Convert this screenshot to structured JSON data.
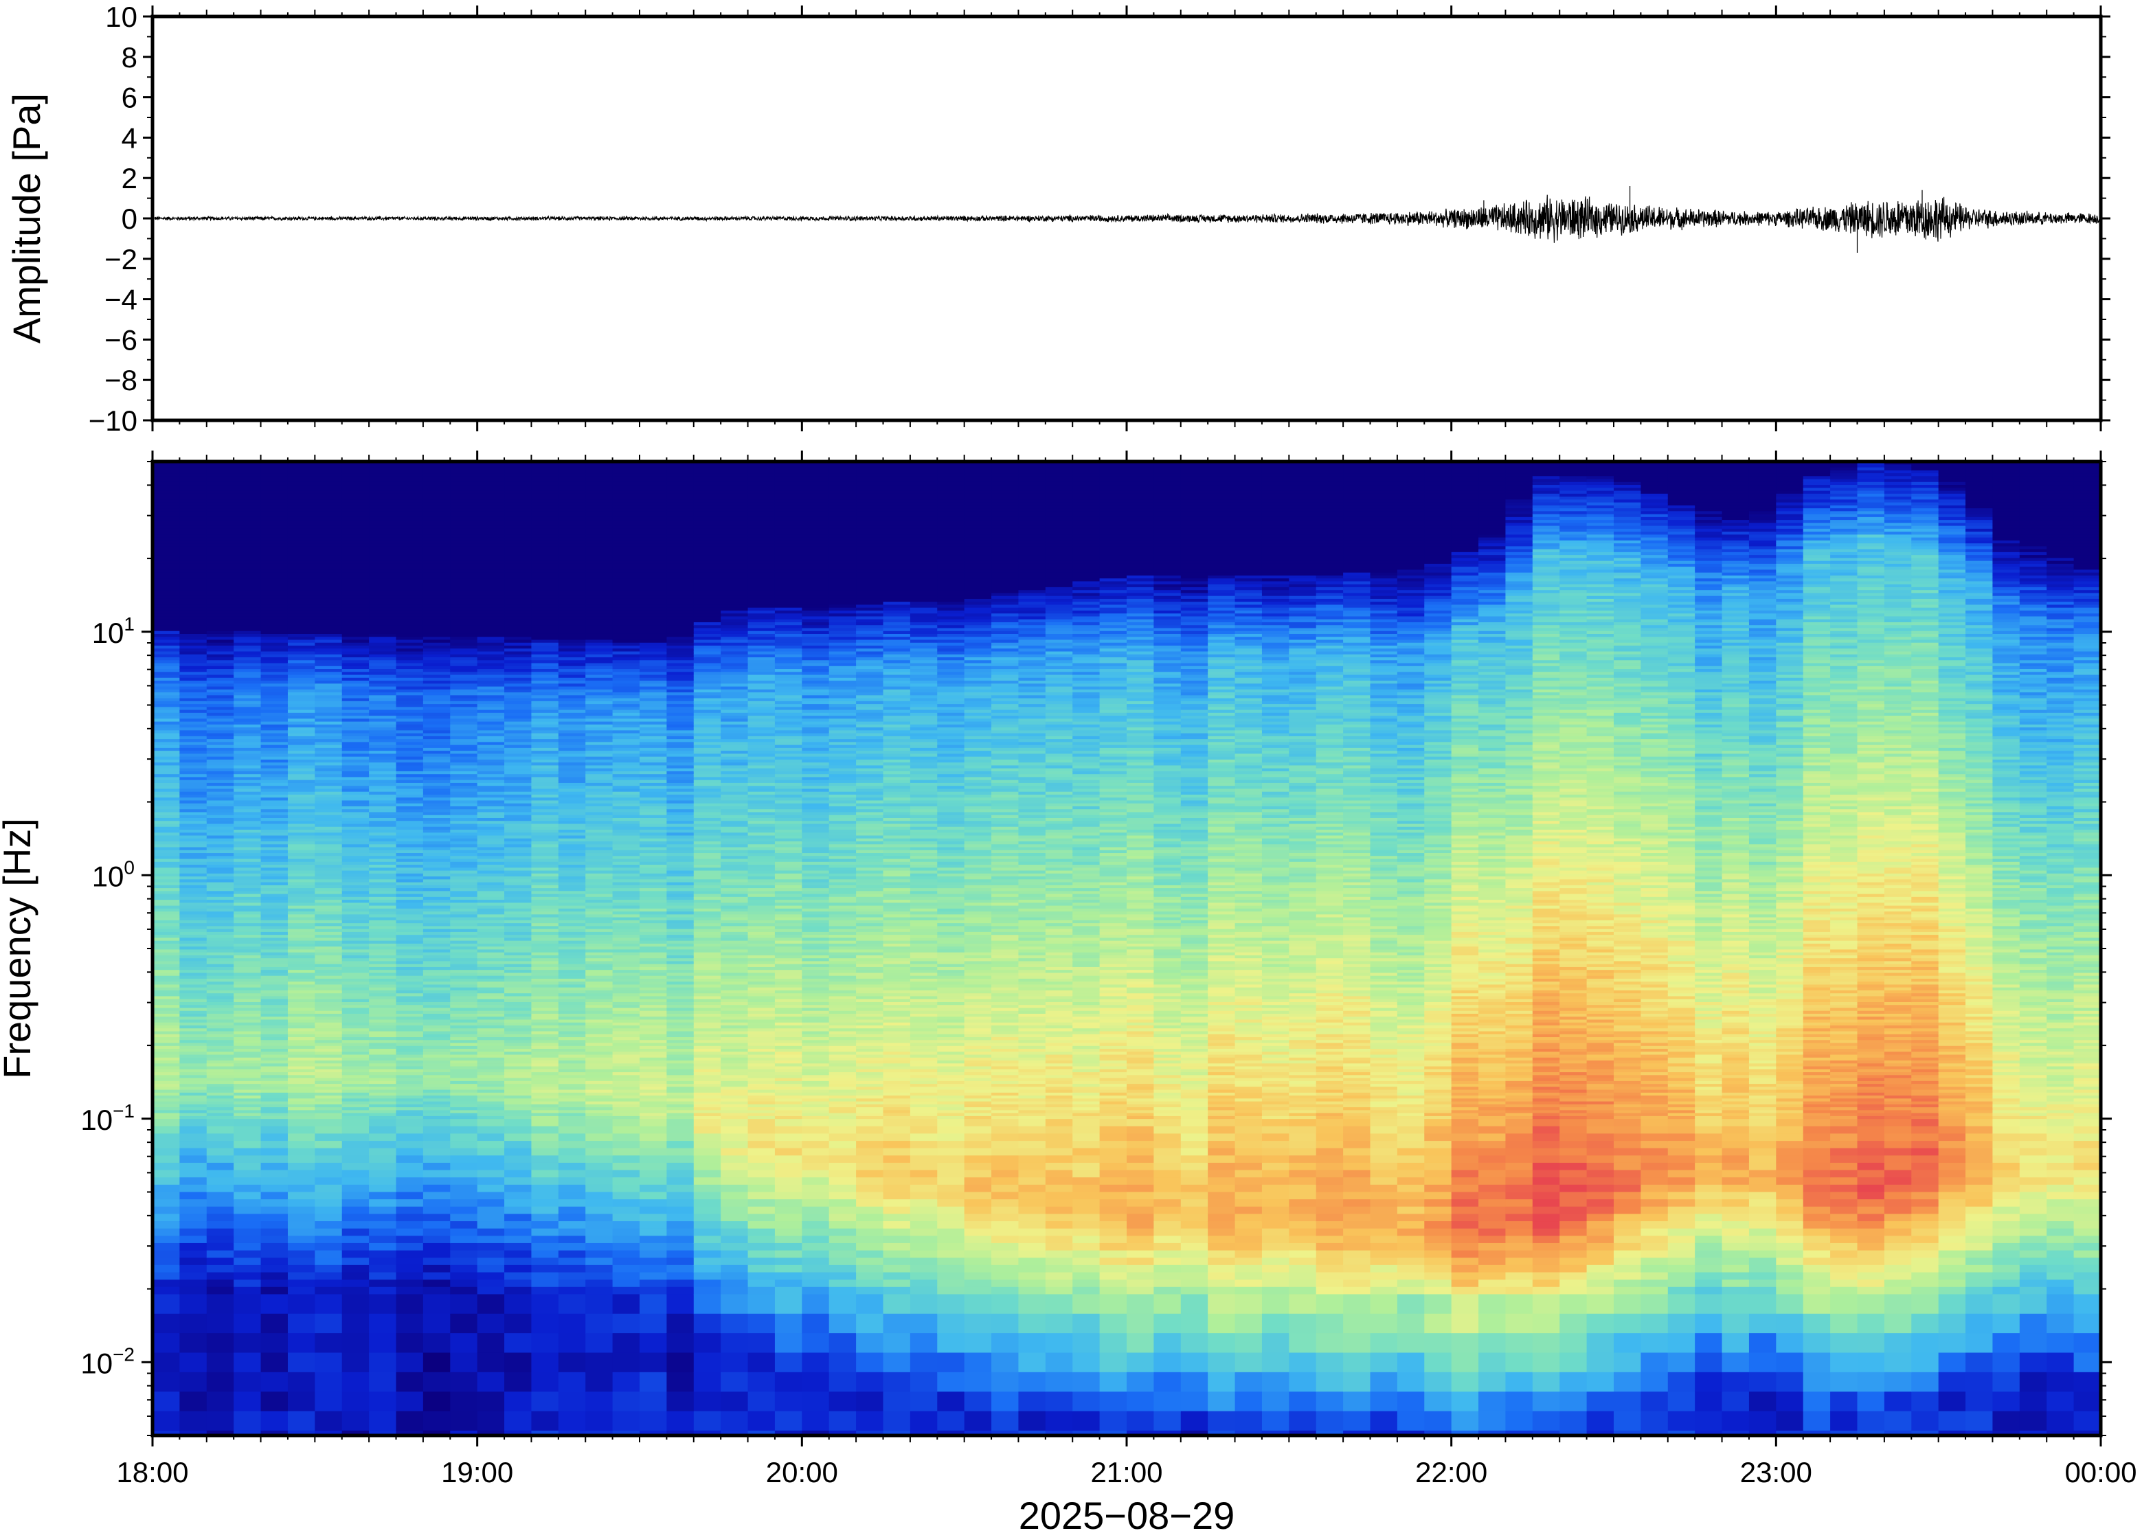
{
  "chart_data": [
    {
      "type": "line",
      "panel": "waveform",
      "ylabel": "Amplitude [Pa]",
      "ylim": [
        -10,
        10
      ],
      "yticks": [
        10,
        8,
        6,
        4,
        2,
        0,
        -2,
        -4,
        -6,
        -8,
        -10
      ],
      "ytick_labels": [
        "10",
        "8",
        "6",
        "4",
        "2",
        "0",
        "−2",
        "−4",
        "−6",
        "−8",
        "−10"
      ],
      "xlim": [
        "18:00",
        "00:00"
      ],
      "envelope": {
        "times_h": [
          18.0,
          19.0,
          20.0,
          20.5,
          21.0,
          21.5,
          21.8,
          22.0,
          22.2,
          22.3,
          22.4,
          22.5,
          22.7,
          22.9,
          23.0,
          23.2,
          23.35,
          23.5,
          23.6,
          23.8,
          24.0
        ],
        "amplitude_pa": [
          0.1,
          0.1,
          0.12,
          0.15,
          0.2,
          0.25,
          0.35,
          0.5,
          0.9,
          1.3,
          1.2,
          0.9,
          0.6,
          0.4,
          0.4,
          0.8,
          1.2,
          1.3,
          0.6,
          0.35,
          0.3
        ]
      },
      "spikes": [
        {
          "time": "22:33",
          "amplitude_pa": 1.6
        },
        {
          "time": "23:15",
          "amplitude_pa": -1.7
        },
        {
          "time": "23:27",
          "amplitude_pa": 1.4
        },
        {
          "time": "22:06",
          "amplitude_pa": 0.9
        }
      ],
      "line_color": "#000000",
      "grid": false
    },
    {
      "type": "heatmap",
      "panel": "spectrogram",
      "ylabel": "Frequency [Hz]",
      "yscale": "log",
      "ylim": [
        0.005,
        50
      ],
      "ytick_labels": [
        {
          "value": 10,
          "base": "10",
          "exp": "1"
        },
        {
          "value": 1,
          "base": "10",
          "exp": "0"
        },
        {
          "value": 0.1,
          "base": "10",
          "exp": "−1"
        },
        {
          "value": 0.01,
          "base": "10",
          "exp": "−2"
        }
      ],
      "xlabel": "2025−08−29",
      "xlim": [
        "18:00",
        "00:00"
      ],
      "xticks": [
        "18:00",
        "19:00",
        "20:00",
        "21:00",
        "22:00",
        "23:00",
        "00:00"
      ],
      "colormap": "jet",
      "color_stops": [
        "#0b0080",
        "#0a1fd0",
        "#1a6ef5",
        "#3fb8f0",
        "#6fdcc8",
        "#b0ef9a",
        "#eef28a",
        "#f9c45a",
        "#f5894a",
        "#e8474f"
      ],
      "intensity_profile": {
        "times_h": [
          18.0,
          19.0,
          19.6,
          19.8,
          20.5,
          21.0,
          21.5,
          21.9,
          22.1,
          22.3,
          22.5,
          22.7,
          22.9,
          23.1,
          23.3,
          23.5,
          23.7,
          24.0
        ],
        "upper_cutoff_hz": [
          9,
          8.5,
          8,
          11,
          12,
          15,
          15,
          16,
          20,
          40,
          38,
          30,
          25,
          38,
          45,
          40,
          22,
          15
        ],
        "peak_intensity": [
          0.55,
          0.55,
          0.6,
          0.68,
          0.75,
          0.8,
          0.82,
          0.85,
          0.95,
          1.0,
          0.92,
          0.85,
          0.8,
          0.9,
          0.96,
          0.94,
          0.78,
          0.7
        ],
        "peak_frequency_hz": [
          0.15,
          0.15,
          0.12,
          0.08,
          0.05,
          0.04,
          0.04,
          0.035,
          0.035,
          0.04,
          0.05,
          0.06,
          0.06,
          0.05,
          0.05,
          0.06,
          0.06,
          0.06
        ]
      },
      "grid": false
    }
  ]
}
